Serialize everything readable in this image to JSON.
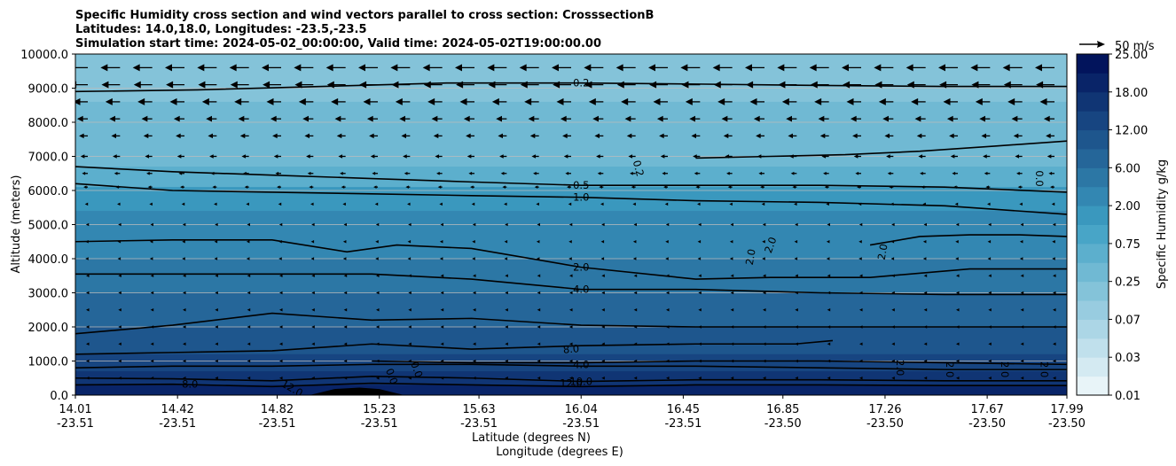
{
  "chart_data": {
    "type": "heatmap",
    "title_lines": [
      "Specific Humidity cross section and wind vectors parallel to cross section: CrosssectionB",
      "Latitudes: 14.0,18.0, Longitudes: -23.5,-23.5",
      "Simulation start time: 2024-05-02_00:00:00, Valid time: 2024-05-02T19:00:00.00"
    ],
    "ylabel": "Altitude (meters)",
    "xlabel_lat": "Latitude (degrees N)",
    "xlabel_lon": "Longitude (degrees E)",
    "ylim": [
      0,
      10000
    ],
    "yticks": [
      "0.0",
      "1000.0",
      "2000.0",
      "3000.0",
      "4000.0",
      "5000.0",
      "6000.0",
      "7000.0",
      "8000.0",
      "9000.0",
      "10000.0"
    ],
    "x_lat_ticks": [
      "14.01",
      "14.42",
      "14.82",
      "15.23",
      "15.63",
      "16.04",
      "16.45",
      "16.85",
      "17.26",
      "17.67",
      "17.99"
    ],
    "x_lon_ticks": [
      "-23.51",
      "-23.51",
      "-23.51",
      "-23.51",
      "-23.51",
      "-23.51",
      "-23.51",
      "-23.50",
      "-23.50",
      "-23.50",
      "-23.50"
    ],
    "colorbar": {
      "label": "Specific Humidity g/kg",
      "tick_labels": [
        "0.01",
        "0.03",
        "0.07",
        "0.25",
        "0.75",
        "2.00",
        "6.00",
        "12.00",
        "18.00",
        "25.00"
      ],
      "levels": [
        0.01,
        0.02,
        0.03,
        0.05,
        0.07,
        0.1,
        0.25,
        0.5,
        0.75,
        1.0,
        2.0,
        4.0,
        6.0,
        8.0,
        12.0,
        15.0,
        18.0,
        20.0,
        25.0
      ]
    },
    "quiver_key": "50 m/s",
    "humidity_layers": [
      {
        "upper_m": 10000,
        "value": 0.1
      },
      {
        "upper_m": 8600,
        "value": 0.25
      },
      {
        "upper_m": 6700,
        "value": 0.5
      },
      {
        "upper_m": 6100,
        "value": 1.0
      },
      {
        "upper_m": 5400,
        "value": 2.0
      },
      {
        "upper_m": 4000,
        "value": 4.0
      },
      {
        "upper_m": 3000,
        "value": 6.0
      },
      {
        "upper_m": 2000,
        "value": 8.0
      },
      {
        "upper_m": 1200,
        "value": 12.0
      },
      {
        "upper_m": 700,
        "value": 15.0
      },
      {
        "upper_m": 300,
        "value": 18.0
      }
    ],
    "contours": [
      {
        "label": "0.2",
        "x": [
          14.01,
          14.5,
          15.0,
          15.5,
          16.04,
          16.5,
          17.0,
          17.5,
          17.99
        ],
        "y": [
          8900,
          8950,
          9050,
          9150,
          9150,
          9120,
          9080,
          9050,
          9050
        ]
      },
      {
        "label": "0.2",
        "x": [
          16.5,
          16.8,
          17.1,
          17.4,
          17.7,
          17.99
        ],
        "y": [
          6950,
          7000,
          7050,
          7150,
          7300,
          7450
        ]
      },
      {
        "label": "0.5",
        "x": [
          14.01,
          14.4,
          14.8,
          15.2,
          15.6,
          16.04,
          16.5,
          17.0,
          17.5,
          17.99
        ],
        "y": [
          6700,
          6550,
          6450,
          6350,
          6250,
          6150,
          6150,
          6150,
          6100,
          5950
        ]
      },
      {
        "label": "1.0",
        "x": [
          14.01,
          14.4,
          14.8,
          15.2,
          15.6,
          16.04,
          16.5,
          17.0,
          17.5,
          17.99
        ],
        "y": [
          6200,
          6000,
          5950,
          5900,
          5850,
          5800,
          5700,
          5650,
          5550,
          5300
        ]
      },
      {
        "label": "2.0",
        "x": [
          14.01,
          14.4,
          14.8,
          15.1,
          15.3,
          15.6,
          16.04,
          16.5,
          16.8,
          17.2,
          17.6,
          17.99
        ],
        "y": [
          4500,
          4550,
          4550,
          4200,
          4400,
          4300,
          3750,
          3400,
          3450,
          3450,
          3700,
          3700
        ]
      },
      {
        "label": "2.0",
        "x": [
          17.2,
          17.4,
          17.6,
          17.8,
          17.99
        ],
        "y": [
          4400,
          4650,
          4700,
          4700,
          4650
        ]
      },
      {
        "label": "4.0",
        "x": [
          14.01,
          14.4,
          14.8,
          15.2,
          15.6,
          16.04,
          16.5,
          17.0,
          17.5,
          17.99
        ],
        "y": [
          3550,
          3550,
          3550,
          3550,
          3400,
          3100,
          3100,
          3000,
          2950,
          2950
        ]
      },
      {
        "label": "6.0",
        "x": [
          14.01,
          14.4,
          14.8,
          15.2,
          15.6,
          16.04,
          16.5,
          17.0,
          17.5,
          17.99
        ],
        "y": [
          1800,
          2050,
          2400,
          2200,
          2250,
          2050,
          2000,
          2000,
          2000,
          2000
        ]
      },
      {
        "label": "8.0",
        "x": [
          14.01,
          14.4,
          14.8,
          15.2,
          15.6,
          16.04,
          16.5,
          16.9,
          17.05
        ],
        "y": [
          1200,
          1250,
          1300,
          1500,
          1350,
          1450,
          1500,
          1500,
          1600
        ]
      },
      {
        "label": "8.0",
        "x": [
          14.01,
          14.4,
          14.8,
          15.2,
          15.6,
          16.04,
          16.5,
          17.0,
          17.5,
          17.99
        ],
        "y": [
          800,
          850,
          850,
          900,
          900,
          850,
          850,
          800,
          750,
          750
        ]
      },
      {
        "label": "4.0",
        "x": [
          15.2,
          15.6,
          16.04,
          16.5,
          17.0,
          17.5,
          17.99
        ],
        "y": [
          1000,
          950,
          950,
          1000,
          1000,
          950,
          900
        ]
      },
      {
        "label": "12.0",
        "x": [
          14.01,
          14.4,
          14.8,
          15.2,
          15.6,
          16.04,
          16.5,
          17.0,
          17.5,
          17.99
        ],
        "y": [
          500,
          480,
          420,
          550,
          500,
          400,
          450,
          450,
          420,
          420
        ]
      },
      {
        "label": "15.0",
        "x": [
          14.01,
          14.4,
          14.8,
          15.2,
          15.6,
          16.04,
          16.5,
          17.0,
          17.5,
          17.99
        ],
        "y": [
          300,
          320,
          250,
          350,
          300,
          250,
          300,
          300,
          280,
          280
        ]
      }
    ],
    "contour_label_text": [
      {
        "text": "0.2",
        "x": 16.04,
        "y": 9150,
        "rotate": 0
      },
      {
        "text": "0.5",
        "x": 16.04,
        "y": 6150,
        "rotate": 0
      },
      {
        "text": "1.0",
        "x": 16.04,
        "y": 5800,
        "rotate": 0
      },
      {
        "text": "2.0",
        "x": 16.04,
        "y": 3750,
        "rotate": 0
      },
      {
        "text": "4.0",
        "x": 16.04,
        "y": 3100,
        "rotate": 0
      },
      {
        "text": "8.0",
        "x": 16.0,
        "y": 1350,
        "rotate": -5
      },
      {
        "text": "4.0",
        "x": 16.04,
        "y": 900,
        "rotate": 0
      },
      {
        "text": "10.0",
        "x": 16.04,
        "y": 400,
        "rotate": 0
      },
      {
        "text": "12.0",
        "x": 16.0,
        "y": 350,
        "rotate": 0
      },
      {
        "text": "8.0",
        "x": 14.47,
        "y": 320,
        "rotate": 0
      },
      {
        "text": "12.0",
        "x": 14.88,
        "y": 200,
        "rotate": 30
      },
      {
        "text": "0.0",
        "x": 15.38,
        "y": 750,
        "rotate": 70
      },
      {
        "text": "0.0",
        "x": 15.28,
        "y": 550,
        "rotate": 70
      },
      {
        "text": "0.2",
        "x": 16.27,
        "y": 6650,
        "rotate": 75
      },
      {
        "text": "0.0",
        "x": 17.88,
        "y": 6350,
        "rotate": 90
      },
      {
        "text": "2.0",
        "x": 16.8,
        "y": 4400,
        "rotate": -70
      },
      {
        "text": "2.0",
        "x": 16.72,
        "y": 4050,
        "rotate": -80
      },
      {
        "text": "2.0",
        "x": 17.25,
        "y": 4200,
        "rotate": -80
      },
      {
        "text": "2.0",
        "x": 17.32,
        "y": 800,
        "rotate": 90
      },
      {
        "text": "2.0",
        "x": 17.52,
        "y": 750,
        "rotate": 90
      },
      {
        "text": "2.0",
        "x": 17.74,
        "y": 750,
        "rotate": 90
      },
      {
        "text": "2.0",
        "x": 17.9,
        "y": 750,
        "rotate": 90
      }
    ],
    "wind_rows": [
      {
        "altitude_m": 9600,
        "speed": 40,
        "direction": -1
      },
      {
        "altitude_m": 9100,
        "speed": 38,
        "direction": -1
      },
      {
        "altitude_m": 8600,
        "speed": 30,
        "direction": -1
      },
      {
        "altitude_m": 8100,
        "speed": 22,
        "direction": -1
      },
      {
        "altitude_m": 7600,
        "speed": 18,
        "direction": -1
      },
      {
        "altitude_m": 7000,
        "speed": 15,
        "direction": -1
      },
      {
        "altitude_m": 6500,
        "speed": 12,
        "direction": -1
      },
      {
        "altitude_m": 6100,
        "speed": 9,
        "direction": -1
      },
      {
        "altitude_m": 5600,
        "speed": 6,
        "direction": -1
      },
      {
        "altitude_m": 5000,
        "speed": 4,
        "direction": -1
      },
      {
        "altitude_m": 4500,
        "speed": 5,
        "direction": -1
      },
      {
        "altitude_m": 4000,
        "speed": 5,
        "direction": -1
      },
      {
        "altitude_m": 3500,
        "speed": 3,
        "direction": -1
      },
      {
        "altitude_m": 3000,
        "speed": 2,
        "direction": -1
      },
      {
        "altitude_m": 2500,
        "speed": 2,
        "direction": -1
      },
      {
        "altitude_m": 2000,
        "speed": 2,
        "direction": -1
      },
      {
        "altitude_m": 1500,
        "speed": 2,
        "direction": -1
      },
      {
        "altitude_m": 1000,
        "speed": 2,
        "direction": -1
      },
      {
        "altitude_m": 500,
        "speed": 2,
        "direction": -1
      }
    ],
    "terrain": {
      "x": [
        14.95,
        15.05,
        15.15,
        15.23,
        15.33
      ],
      "y": [
        0,
        180,
        220,
        180,
        0
      ]
    }
  }
}
